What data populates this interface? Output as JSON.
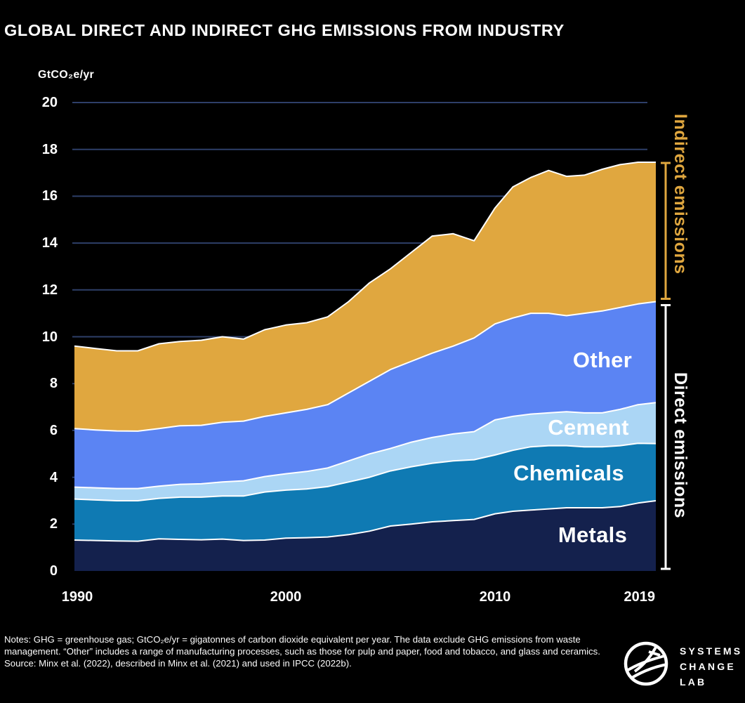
{
  "title": "GLOBAL DIRECT AND INDIRECT GHG EMISSIONS FROM INDUSTRY",
  "unit_label": "GtCO₂e/yr",
  "chart_data": {
    "type": "area",
    "stacked": true,
    "title": "Global direct and indirect GHG emissions from industry",
    "ylabel": "GtCO₂e/yr",
    "ylim": [
      0,
      20
    ],
    "y_ticks": [
      0,
      2,
      4,
      6,
      8,
      10,
      12,
      14,
      16,
      18,
      20
    ],
    "x_ticks": [
      1990,
      2000,
      2010,
      2019
    ],
    "grid": true,
    "legend_position": "in-chart labels with right-side brackets",
    "x": [
      1990,
      1991,
      1992,
      1993,
      1994,
      1995,
      1996,
      1997,
      1998,
      1999,
      2000,
      2001,
      2002,
      2003,
      2004,
      2005,
      2006,
      2007,
      2008,
      2009,
      2010,
      2011,
      2012,
      2013,
      2014,
      2015,
      2016,
      2017,
      2018,
      2019
    ],
    "series": [
      {
        "name": "Metals",
        "color": "#14214D",
        "values": [
          1.32,
          1.3,
          1.28,
          1.27,
          1.37,
          1.35,
          1.33,
          1.36,
          1.3,
          1.32,
          1.4,
          1.42,
          1.45,
          1.55,
          1.7,
          1.92,
          2.0,
          2.1,
          2.15,
          2.2,
          2.44,
          2.55,
          2.6,
          2.65,
          2.7,
          2.7,
          2.7,
          2.75,
          2.9,
          3.0
        ]
      },
      {
        "name": "Chemicals",
        "color": "#0F7AB3",
        "values": [
          1.75,
          1.73,
          1.72,
          1.73,
          1.73,
          1.8,
          1.82,
          1.84,
          1.9,
          2.05,
          2.05,
          2.08,
          2.15,
          2.25,
          2.3,
          2.35,
          2.45,
          2.5,
          2.55,
          2.55,
          2.51,
          2.6,
          2.7,
          2.7,
          2.65,
          2.6,
          2.6,
          2.6,
          2.55,
          2.44
        ]
      },
      {
        "name": "Cement",
        "color": "#ABD6F5",
        "values": [
          0.51,
          0.52,
          0.52,
          0.52,
          0.52,
          0.55,
          0.57,
          0.6,
          0.65,
          0.66,
          0.7,
          0.75,
          0.8,
          0.9,
          1.0,
          0.96,
          1.05,
          1.1,
          1.15,
          1.2,
          1.5,
          1.45,
          1.4,
          1.4,
          1.45,
          1.45,
          1.45,
          1.55,
          1.65,
          1.75
        ]
      },
      {
        "name": "Other",
        "color": "#5B84F3",
        "values": [
          2.5,
          2.47,
          2.46,
          2.45,
          2.46,
          2.5,
          2.5,
          2.55,
          2.55,
          2.57,
          2.6,
          2.65,
          2.7,
          2.9,
          3.1,
          3.37,
          3.45,
          3.6,
          3.75,
          4.0,
          4.1,
          4.2,
          4.3,
          4.25,
          4.1,
          4.25,
          4.35,
          4.35,
          4.3,
          4.31
        ]
      },
      {
        "name": "Indirect emissions",
        "color": "#E0A73F",
        "values": [
          3.52,
          3.48,
          3.42,
          3.43,
          3.62,
          3.6,
          3.63,
          3.65,
          3.5,
          3.7,
          3.75,
          3.7,
          3.75,
          3.9,
          4.2,
          4.3,
          4.65,
          5.0,
          4.8,
          4.15,
          4.95,
          5.6,
          5.8,
          6.1,
          5.95,
          5.9,
          6.05,
          6.1,
          6.05,
          5.95
        ]
      }
    ],
    "annotations": {
      "indirect_label": "Indirect emissions",
      "direct_label": "Direct emissions"
    },
    "colors": {
      "gridline": "#2E3F69",
      "boundary_stroke": "#FFFFFF",
      "indirect_accent": "#E0A73F",
      "direct_accent": "#FFFFFF",
      "background": "#000000"
    }
  },
  "notes": "Notes: GHG = greenhouse gas; GtCO₂e/yr = gigatonnes of carbon dioxide equivalent per year. The data exclude GHG emissions from waste management. “Other” includes a range of manufacturing processes, such as those for pulp and paper, food and tobacco, and glass and ceramics. Source: Minx et al. (2022), described in Minx et al. (2021) and used in IPCC (2022b).",
  "logo": {
    "line1": "SYSTEMS",
    "line2": "CHANGE",
    "line3": "LAB"
  }
}
